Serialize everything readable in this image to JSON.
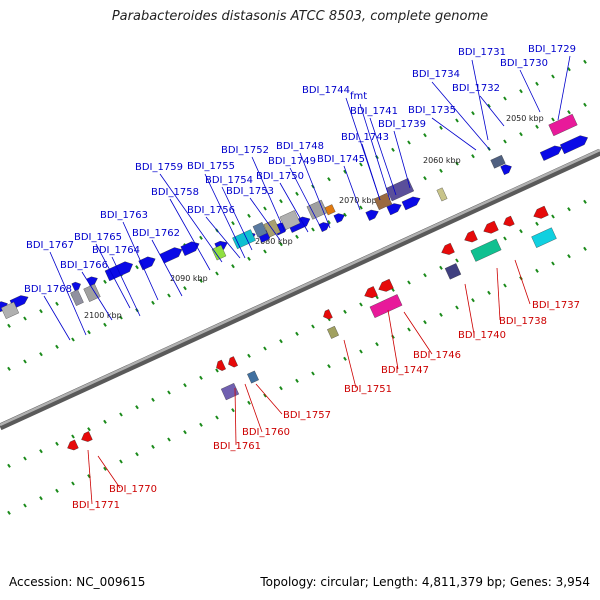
{
  "title": "Parabacteroides distasonis ATCC 8503, complete genome",
  "footer": {
    "accession": "Accession: NC_009615",
    "summary": "Topology: circular; Length: 4,811,379 bp; Genes: 3,954"
  },
  "colors": {
    "forward_gene": "#0a0ae6",
    "reverse_gene": "#e60a0a",
    "backbone": "#808080",
    "tick": "#1a8a1a"
  },
  "scale_labels": [
    "2050 kbp",
    "2060 kbp",
    "2070 kbp",
    "2080 kbp",
    "2090 kbp",
    "2100 kbp"
  ],
  "forward_genes": [
    "BDI_1731",
    "BDI_1729",
    "BDI_1730",
    "BDI_1734",
    "BDI_1732",
    "BDI_1744",
    "fmt",
    "BDI_1741",
    "BDI_1735",
    "BDI_1739",
    "BDI_1743",
    "BDI_1752",
    "BDI_1748",
    "BDI_1749",
    "BDI_1745",
    "BDI_1759",
    "BDI_1755",
    "BDI_1754",
    "BDI_1750",
    "BDI_1758",
    "BDI_1753",
    "BDI_1756",
    "BDI_1763",
    "BDI_1765",
    "BDI_1762",
    "BDI_1767",
    "BDI_1764",
    "BDI_1766",
    "BDI_1768"
  ],
  "reverse_genes": [
    "BDI_1737",
    "BDI_1738",
    "BDI_1740",
    "BDI_1746",
    "BDI_1747",
    "BDI_1751",
    "BDI_1757",
    "BDI_1760",
    "BDI_1761",
    "BDI_1770",
    "BDI_1771"
  ]
}
